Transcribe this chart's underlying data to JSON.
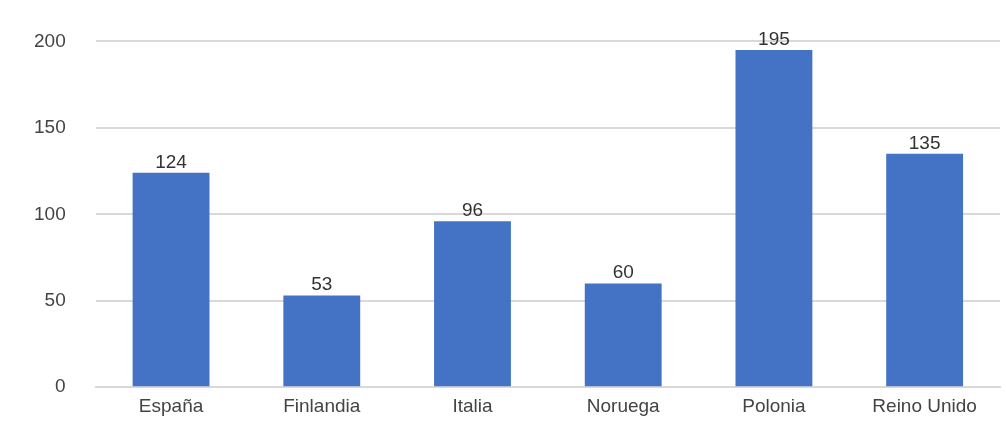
{
  "chart_data": {
    "type": "bar",
    "categories": [
      "España",
      "Finlandia",
      "Italia",
      "Noruega",
      "Polonia",
      "Reino Unido"
    ],
    "values": [
      124,
      53,
      96,
      60,
      195,
      135
    ],
    "color": "#4472c4",
    "ylim": [
      0,
      200
    ],
    "yticks": [
      0,
      50,
      100,
      150,
      200
    ],
    "grid": "y",
    "data_labels": true,
    "legend": false
  }
}
